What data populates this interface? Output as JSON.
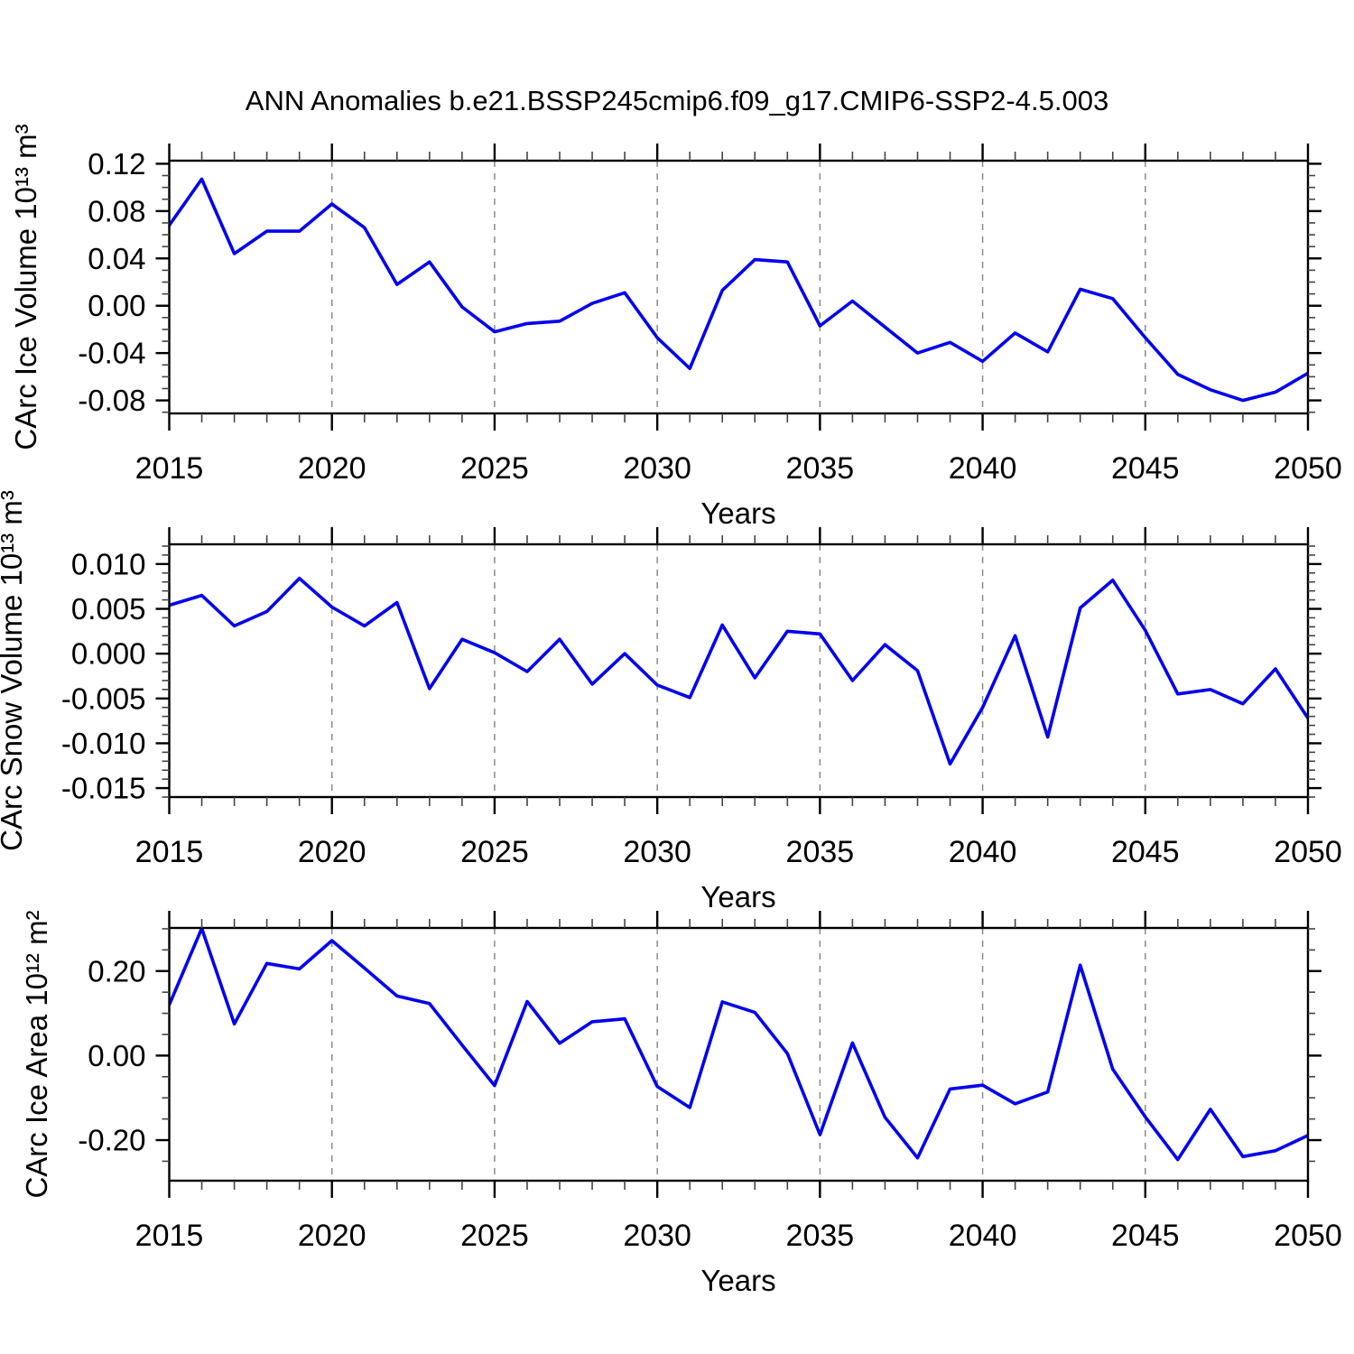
{
  "header": {
    "title": "ANN Anomalies b.e21.BSSP245cmip6.f09_g17.CMIP6-SSP2-4.5.003"
  },
  "chart_data": {
    "type": "line",
    "x_label": "Years",
    "x": [
      2015,
      2016,
      2017,
      2018,
      2019,
      2020,
      2021,
      2022,
      2023,
      2024,
      2025,
      2026,
      2027,
      2028,
      2029,
      2030,
      2031,
      2032,
      2033,
      2034,
      2035,
      2036,
      2037,
      2038,
      2039,
      2040,
      2041,
      2042,
      2043,
      2044,
      2045,
      2046,
      2047,
      2048,
      2049,
      2050
    ],
    "xlim": [
      2015,
      2050
    ],
    "x_major_ticks": [
      2015,
      2020,
      2025,
      2030,
      2035,
      2040,
      2045,
      2050
    ],
    "x_tick_labels": [
      "2015",
      "2020",
      "2025",
      "2030",
      "2035",
      "2040",
      "2045",
      "2050"
    ],
    "x_gridlines": [
      2020,
      2025,
      2030,
      2035,
      2040,
      2045
    ],
    "line_color": "#0000ee",
    "grid_color": "#8a8a8a",
    "axis_color": "#000000",
    "panels": [
      {
        "name": "carc-ice-volume",
        "ylabel": "CArc Ice Volume 10¹³ m³",
        "ylim": [
          -0.091,
          0.1226
        ],
        "yticks_major": [
          0.12,
          0.08,
          0.04,
          0.0,
          -0.04,
          -0.08
        ],
        "ytick_labels": [
          "0.12",
          "0.08",
          "0.04",
          "0.00",
          "-0.04",
          "-0.08"
        ],
        "y_minor_step": 0.01,
        "values": [
          0.068,
          0.107,
          0.044,
          0.063,
          0.063,
          0.086,
          0.066,
          0.018,
          0.037,
          -0.001,
          -0.022,
          -0.015,
          -0.013,
          0.002,
          0.011,
          -0.027,
          -0.053,
          0.013,
          0.039,
          0.037,
          -0.017,
          0.004,
          -0.018,
          -0.04,
          -0.031,
          -0.047,
          -0.023,
          -0.039,
          0.014,
          0.006,
          -0.027,
          -0.058,
          -0.071,
          -0.08,
          -0.073,
          -0.057
        ]
      },
      {
        "name": "carc-snow-volume",
        "ylabel": "CArc Snow Volume 10¹³ m³",
        "ylim": [
          -0.016,
          0.0122
        ],
        "yticks_major": [
          0.01,
          0.005,
          0.0,
          -0.005,
          -0.01,
          -0.015
        ],
        "ytick_labels": [
          "0.010",
          "0.005",
          "0.000",
          "-0.005",
          "-0.010",
          "-0.015"
        ],
        "y_minor_step": 0.001,
        "values": [
          0.0054,
          0.0065,
          0.0031,
          0.0047,
          0.0084,
          0.0052,
          0.0031,
          0.0057,
          -0.0039,
          0.0016,
          0.0001,
          -0.002,
          0.0016,
          -0.0034,
          0.0,
          -0.0035,
          -0.0049,
          0.0032,
          -0.0027,
          0.0025,
          0.0022,
          -0.003,
          0.001,
          -0.0019,
          -0.0123,
          -0.006,
          0.002,
          -0.0093,
          0.0051,
          0.0082,
          0.0026,
          -0.0045,
          -0.004,
          -0.0056,
          -0.0017,
          -0.0072
        ]
      },
      {
        "name": "carc-ice-area",
        "ylabel": "CArc Ice Area 10¹² m²",
        "ylim": [
          -0.296,
          0.302
        ],
        "yticks_major": [
          0.2,
          0.0,
          -0.2
        ],
        "ytick_labels": [
          "0.20",
          "0.00",
          "-0.20"
        ],
        "y_minor_step": 0.05,
        "values": [
          0.12,
          0.301,
          0.075,
          0.218,
          0.205,
          0.272,
          0.207,
          0.141,
          0.123,
          0.025,
          -0.071,
          0.128,
          0.029,
          0.08,
          0.087,
          -0.073,
          -0.123,
          0.127,
          0.102,
          0.005,
          -0.187,
          0.03,
          -0.146,
          -0.242,
          -0.079,
          -0.07,
          -0.114,
          -0.086,
          0.214,
          -0.032,
          -0.145,
          -0.246,
          -0.127,
          -0.239,
          -0.225,
          -0.189
        ]
      }
    ]
  }
}
